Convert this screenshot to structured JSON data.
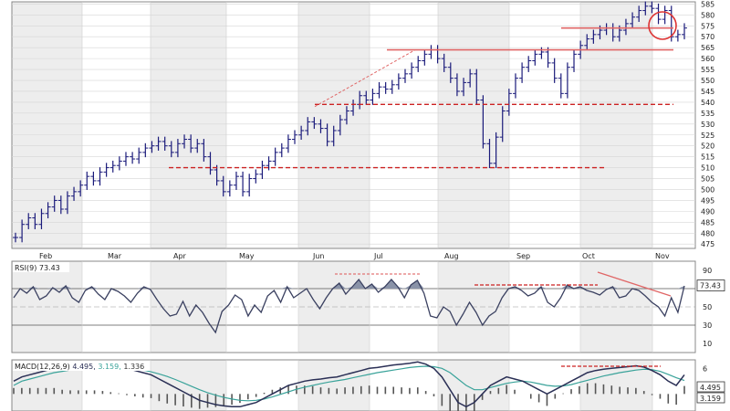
{
  "chart_data": [
    {
      "type": "ohlc",
      "panel": "price",
      "x_tick_labels": [
        "Feb",
        "Mar",
        "Apr",
        "May",
        "Jun",
        "Jul",
        "Aug",
        "Sep",
        "Oct",
        "Nov"
      ],
      "y_tick_labels": [
        "475",
        "480",
        "485",
        "490",
        "495",
        "500",
        "505",
        "510",
        "515",
        "520",
        "525",
        "530",
        "535",
        "540",
        "545",
        "550",
        "555",
        "560",
        "565",
        "570",
        "575",
        "580",
        "585"
      ],
      "ylim": [
        473,
        586
      ],
      "grid": true,
      "series": [
        {
          "values": [
            478,
            484,
            487,
            484,
            489,
            492,
            495,
            491,
            497,
            499,
            502,
            506,
            504,
            508,
            510,
            511,
            513,
            515,
            514,
            517,
            519,
            520,
            522,
            520,
            517,
            521,
            523,
            519,
            521,
            515,
            509,
            504,
            499,
            502,
            506,
            499,
            505,
            507,
            511,
            513,
            517,
            519,
            523,
            525,
            527,
            531,
            530,
            528,
            522,
            527,
            532,
            536,
            539,
            543,
            541,
            544,
            547,
            546,
            548,
            551,
            553,
            556,
            559,
            562,
            564,
            560,
            556,
            551,
            545,
            549,
            553,
            541,
            521,
            512,
            524,
            536,
            544,
            551,
            556,
            559,
            562,
            563,
            558,
            551,
            544,
            556,
            562,
            566,
            569,
            571,
            573,
            574,
            570,
            573,
            576,
            579,
            582,
            584,
            583,
            578,
            582,
            570,
            571,
            574
          ]
        }
      ],
      "annotations": {
        "dashed_support_levels": [
          510,
          539
        ],
        "dashed_trendline_from": [
          538,
          564
        ],
        "solid_support_levels": [
          564,
          574
        ],
        "circle_highlight": true
      }
    },
    {
      "type": "line",
      "panel": "rsi",
      "title": "RSI(9) 73.43",
      "last_value_label": "73.43",
      "y_tick_labels": [
        "10",
        "30",
        "50",
        "70",
        "90"
      ],
      "ylim": [
        0,
        100
      ],
      "reference_lines": [
        30,
        70
      ],
      "series": [
        {
          "values": [
            60,
            70,
            65,
            72,
            58,
            62,
            71,
            66,
            73,
            60,
            55,
            68,
            72,
            64,
            58,
            70,
            67,
            62,
            55,
            65,
            72,
            69,
            58,
            48,
            40,
            42,
            56,
            40,
            52,
            44,
            32,
            22,
            45,
            52,
            63,
            58,
            40,
            52,
            44,
            62,
            68,
            55,
            72,
            60,
            65,
            70,
            58,
            48,
            60,
            70,
            76,
            64,
            72,
            80,
            70,
            75,
            66,
            72,
            80,
            72,
            60,
            74,
            79,
            65,
            40,
            38,
            50,
            45,
            30,
            42,
            55,
            44,
            30,
            40,
            45,
            60,
            70,
            72,
            68,
            62,
            65,
            72,
            55,
            50,
            60,
            74,
            70,
            72,
            68,
            66,
            63,
            69,
            72,
            60,
            62,
            70,
            68,
            62,
            55,
            50,
            40,
            60,
            44,
            73
          ]
        }
      ]
    },
    {
      "type": "line",
      "panel": "macd",
      "title": "MACD(12,26,9)",
      "values_label": [
        "4.495",
        "3.159",
        "1.336"
      ],
      "last_value_labels": [
        "4.495",
        "3.159"
      ],
      "y_tick_labels": [
        "6"
      ],
      "ylim": [
        -4,
        8
      ],
      "series": [
        {
          "values": [
            3,
            4,
            4.5,
            5,
            5.5,
            6,
            6,
            6.2,
            6.5,
            6.8,
            7,
            7,
            6.8,
            6.5,
            6,
            5.5,
            5,
            4.5,
            3.5,
            2.5,
            1.5,
            0.5,
            -0.5,
            -1.5,
            -2,
            -2.5,
            -2.8,
            -3,
            -3,
            -2.5,
            -2,
            -1,
            0,
            1,
            2,
            2.5,
            3,
            3.3,
            3.5,
            3.8,
            4,
            4.5,
            5,
            5.5,
            6,
            6.2,
            6.5,
            6.8,
            7,
            7.2,
            7.5,
            7,
            6,
            4,
            1,
            -2,
            -3,
            -2,
            0,
            2,
            3,
            4,
            3.5,
            3,
            2,
            1,
            0,
            1,
            2,
            3,
            4,
            5,
            5.5,
            5.8,
            6,
            6.2,
            6.4,
            6.6,
            6.3,
            5.5,
            4.5,
            3,
            2,
            4.495
          ]
        },
        {
          "values": [
            2,
            3,
            3.5,
            4,
            4.5,
            5,
            5.3,
            5.6,
            5.9,
            6.2,
            6.4,
            6.5,
            6.5,
            6.4,
            6.2,
            5.9,
            5.6,
            5.2,
            4.7,
            4.1,
            3.4,
            2.6,
            1.8,
            1,
            0.3,
            -0.3,
            -0.8,
            -1.2,
            -1.5,
            -1.6,
            -1.5,
            -1.2,
            -0.7,
            -0.1,
            0.5,
            1.1,
            1.6,
            2,
            2.4,
            2.8,
            3.1,
            3.4,
            3.8,
            4.2,
            4.6,
            5,
            5.3,
            5.6,
            5.9,
            6.2,
            6.4,
            6.5,
            6.4,
            6,
            5,
            3.5,
            2,
            1,
            1,
            1.5,
            2,
            2.5,
            2.8,
            3,
            2.8,
            2.4,
            2,
            1.8,
            1.9,
            2.2,
            2.7,
            3.2,
            3.7,
            4.2,
            4.6,
            5,
            5.3,
            5.6,
            5.8,
            5.7,
            5.3,
            4.6,
            3.8,
            3.159
          ]
        }
      ],
      "annotations": {
        "dashed_resistance": 6.5
      }
    }
  ]
}
